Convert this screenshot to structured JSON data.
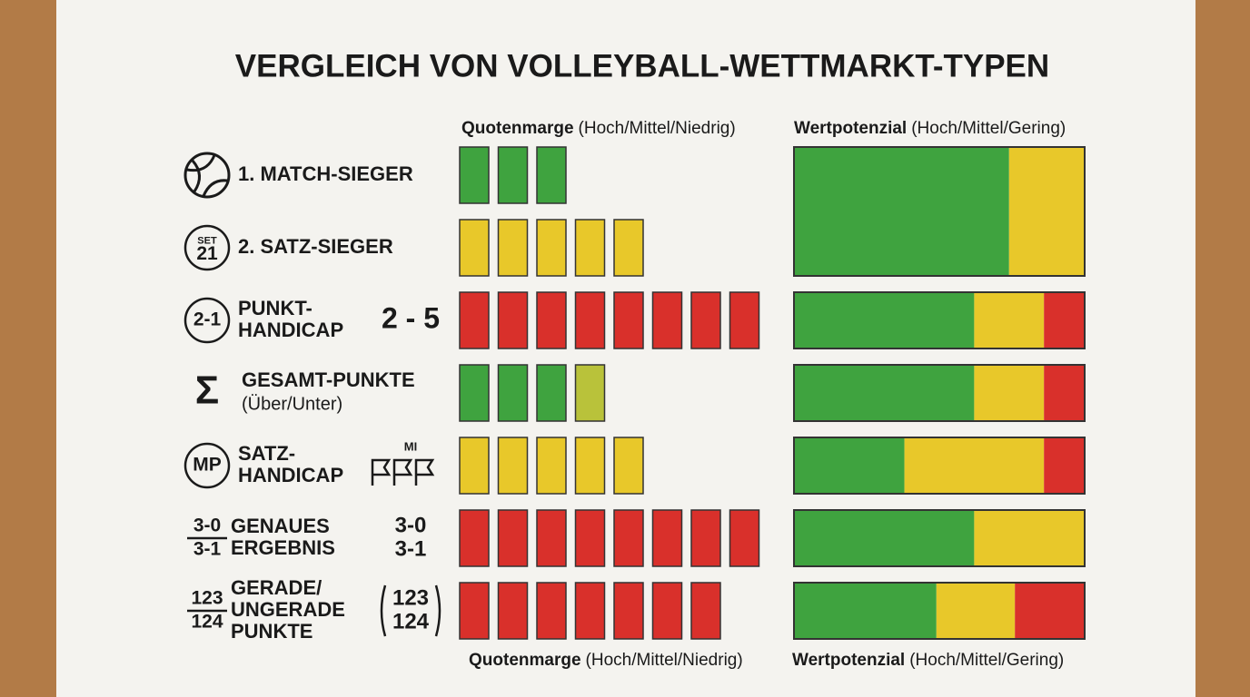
{
  "title": "VERGLEICH VON VOLLEYBALL-WETTMARKT-TYPEN",
  "header": {
    "margin_bold": "Quotenmarge",
    "margin_rest": "(Hoch/Mittel/Niedrig)",
    "value_bold": "Wertpotenzial",
    "value_rest": "(Hoch/Mittel/Gering)"
  },
  "footer": {
    "margin_bold": "Quotenmarge",
    "margin_rest": "(Hoch/Mittel/Niedrig)",
    "value_bold": "Wertpotenzial",
    "value_rest": "(Hoch/Mittel/Gering)"
  },
  "colors": {
    "green": "#3fa33f",
    "yellow": "#e8c82a",
    "red": "#d9302b",
    "olive": "#b9c23a"
  },
  "rows": [
    {
      "label": [
        "1. MATCH-SIEGER"
      ],
      "margin_blocks": [
        "green",
        "green",
        "green"
      ],
      "value_segments": [
        {
          "color": "green",
          "share": 74
        },
        {
          "color": "yellow",
          "share": 26
        }
      ]
    },
    {
      "icon_text": [
        "SET",
        "21"
      ],
      "label": [
        "2. SATZ-SIEGER"
      ],
      "margin_blocks": [
        "yellow",
        "yellow",
        "yellow",
        "yellow",
        "yellow"
      ]
    },
    {
      "icon_text": [
        "2-1"
      ],
      "label": [
        "PUNKT-",
        "HANDICAP"
      ],
      "side_text": [
        "2 - 5"
      ],
      "margin_blocks": [
        "red",
        "red",
        "red",
        "red",
        "red",
        "red",
        "red",
        "red"
      ],
      "value_segments": [
        {
          "color": "green",
          "share": 62
        },
        {
          "color": "yellow",
          "share": 24
        },
        {
          "color": "red",
          "share": 14
        }
      ]
    },
    {
      "icon_text": [
        "Σ"
      ],
      "label": [
        "GESAMT-PUNKTE"
      ],
      "sub": "(Über/Unter)",
      "margin_blocks": [
        "green",
        "green",
        "green",
        "olive"
      ],
      "value_segments": [
        {
          "color": "green",
          "share": 62
        },
        {
          "color": "yellow",
          "share": 24
        },
        {
          "color": "red",
          "share": 14
        }
      ]
    },
    {
      "icon_text": [
        "MP"
      ],
      "label": [
        "SATZ-",
        "HANDICAP"
      ],
      "side_text": [
        "MI"
      ],
      "margin_blocks": [
        "yellow",
        "yellow",
        "yellow",
        "yellow",
        "yellow"
      ],
      "value_segments": [
        {
          "color": "green",
          "share": 38
        },
        {
          "color": "yellow",
          "share": 48
        },
        {
          "color": "red",
          "share": 14
        }
      ]
    },
    {
      "icon_text": [
        "3-0",
        "3-1"
      ],
      "label": [
        "GENAUES",
        "ERGEBNIS"
      ],
      "side_text": [
        "3-0",
        "3-1"
      ],
      "margin_blocks": [
        "red",
        "red",
        "red",
        "red",
        "red",
        "red",
        "red",
        "red"
      ],
      "value_segments": [
        {
          "color": "green",
          "share": 62
        },
        {
          "color": "yellow",
          "share": 38
        }
      ]
    },
    {
      "icon_text": [
        "123",
        "124"
      ],
      "label": [
        "GERADE/",
        "UNGERADE",
        "PUNKTE"
      ],
      "side_text": [
        "123",
        "124"
      ],
      "margin_blocks": [
        "red",
        "red",
        "red",
        "red",
        "red",
        "red",
        "red"
      ],
      "value_segments": [
        {
          "color": "green",
          "share": 49
        },
        {
          "color": "yellow",
          "share": 27
        },
        {
          "color": "red",
          "share": 24
        }
      ]
    }
  ]
}
